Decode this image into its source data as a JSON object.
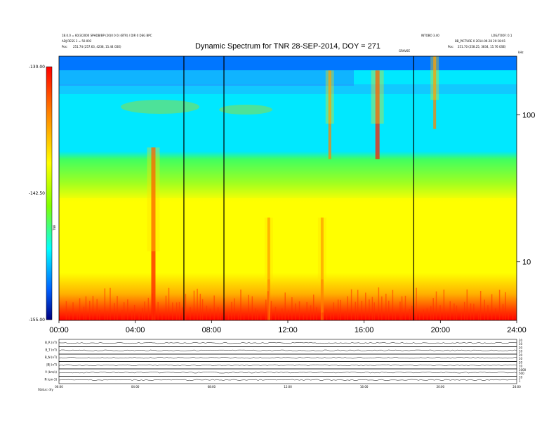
{
  "chart_data": {
    "type": "heatmap",
    "title": "Dynamic Spectrum for TNR 28-SEP-2014, DOY = 271",
    "header_left": {
      "line1": "1B.0.0 = 60/3/2000 SPHDB/BP (20)0 0 0) (BTR) / DIR 0 DEG BPC",
      "line2": "ADJ RESS 3 = 50.002",
      "line3_label": "Pos:",
      "line3_value": "251.74 (257.63, 4238, 15.44 GSE)"
    },
    "header_right": {
      "line0": "INTOBO 3.40",
      "line0b": "LOG/TOOF: 0.1",
      "line1": "BB_PICTURE 0 2014-09-28 20:18:01",
      "line2_label": "Pos:",
      "line2_value": "251.70 (258.25, 3834, 15.76 GSE)",
      "marker": "GRAV0E"
    },
    "x_ticks": [
      "00:00",
      "04:00",
      "08:00",
      "12:00",
      "16:00",
      "20:00",
      "24:00"
    ],
    "x_hours": [
      0,
      4,
      8,
      12,
      16,
      20,
      24
    ],
    "xlim": [
      0,
      24
    ],
    "y_scale": "log",
    "y_ticks": [
      10,
      100
    ],
    "y_tick_labels": [
      "10",
      "100"
    ],
    "ylim": [
      4,
      250
    ],
    "y_top_label": "kHz",
    "colorbar": {
      "ticks": [
        "-130.00",
        "-142.50",
        "-155.00"
      ],
      "values": [
        -130,
        -142.5,
        -155
      ],
      "label": "TNR",
      "colors": [
        "#ff0000",
        "#ff8000",
        "#ffff00",
        "#80ff00",
        "#00ffff",
        "#0080ff",
        "#0000ff",
        "#000080"
      ]
    },
    "data_gaps_hours": [
      6.55,
      8.65,
      18.6
    ],
    "bursts": [
      {
        "hour": 4.95,
        "freq_low": 4,
        "freq_high": 60,
        "intensity": "high"
      },
      {
        "hour": 16.7,
        "freq_low": 50,
        "freq_high": 200,
        "intensity": "high"
      },
      {
        "hour": 14.2,
        "freq_low": 50,
        "freq_high": 200,
        "intensity": "medium"
      },
      {
        "hour": 19.7,
        "freq_low": 80,
        "freq_high": 250,
        "intensity": "medium"
      },
      {
        "hour": 13.8,
        "freq_low": 4,
        "freq_high": 20,
        "intensity": "medium"
      },
      {
        "hour": 11.0,
        "freq_low": 4,
        "freq_high": 20,
        "intensity": "medium"
      }
    ]
  },
  "bottom_panels": {
    "rows": [
      {
        "label": "B_R (nT)",
        "right_ticks": [
          "20",
          "10"
        ]
      },
      {
        "label": "B_T (nT)",
        "right_ticks": [
          "20",
          "10"
        ]
      },
      {
        "label": "B_N (nT)",
        "right_ticks": [
          "20",
          "10"
        ]
      },
      {
        "label": "|B| (nT)",
        "right_ticks": [
          "20",
          "10"
        ]
      },
      {
        "label": "V (km/s)",
        "right_ticks": [
          "1000",
          "500"
        ]
      },
      {
        "label": "N (cm-3)",
        "right_ticks": [
          "10",
          "1"
        ]
      }
    ],
    "x_ticks": [
      "00:00",
      "04:00",
      "08:00",
      "12:00",
      "16:00",
      "20:00",
      "24:00"
    ],
    "footer_left": "Status: dry"
  }
}
